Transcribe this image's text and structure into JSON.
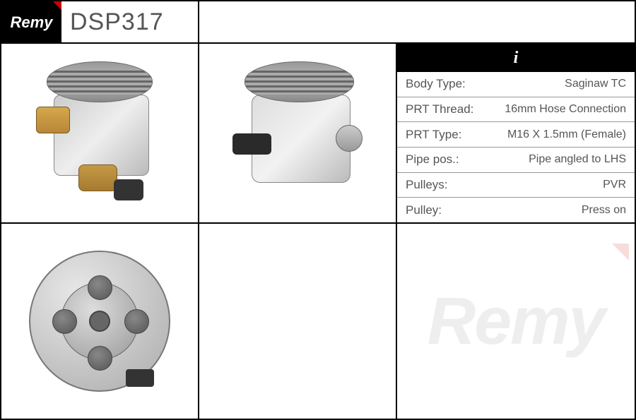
{
  "logo": {
    "text": "Remy"
  },
  "part_number": "DSP317",
  "info_header_icon": "i",
  "specs": [
    {
      "label": "Body Type:",
      "value": "Saginaw TC"
    },
    {
      "label": "PRT Thread:",
      "value": "16mm Hose Connection"
    },
    {
      "label": "PRT Type:",
      "value": "M16 X 1.5mm (Female)"
    },
    {
      "label": "Pipe pos.:",
      "value": "Pipe angled to LHS"
    },
    {
      "label": "Pulleys:",
      "value": "PVR"
    },
    {
      "label": "Pulley:",
      "value": "Press on"
    }
  ],
  "watermark": "Remy",
  "colors": {
    "border": "#000000",
    "text": "#555555",
    "logo_bg": "#000000",
    "logo_accent": "#cc0000",
    "watermark": "#eeeeee"
  }
}
